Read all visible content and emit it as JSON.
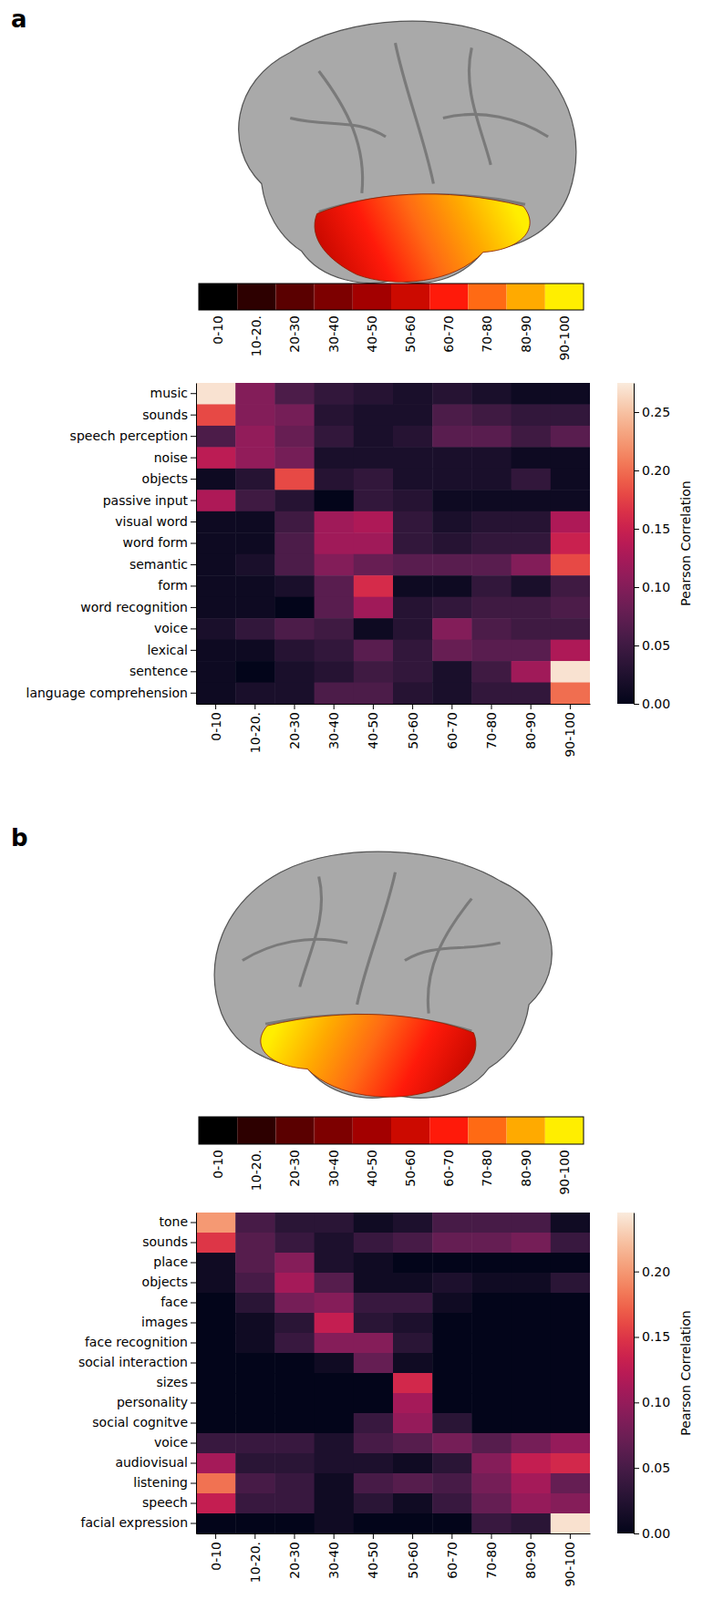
{
  "chart_data": [
    {
      "type": "heatmap",
      "panel_label": "a",
      "bin_legend": {
        "labels": [
          "0-10",
          "10-20.",
          "20-30",
          "30-40",
          "40-50",
          "50-60",
          "60-70",
          "70-80",
          "80-90",
          "90-100"
        ],
        "colors": [
          "#000000",
          "#2d0000",
          "#5a0000",
          "#7d0000",
          "#a30000",
          "#cc0a00",
          "#ff1a0a",
          "#ff6a14",
          "#ffaa00",
          "#ffee00"
        ]
      },
      "x": [
        "0-10",
        "10-20.",
        "20-30",
        "30-40",
        "40-50",
        "50-60",
        "60-70",
        "70-80",
        "80-90",
        "90-100"
      ],
      "y": [
        "music",
        "sounds",
        "speech perception",
        "noise",
        "objects",
        "passive input",
        "visual word",
        "word form",
        "semantic",
        "form",
        "word recognition",
        "voice",
        "lexical",
        "sentence",
        "language comprehension"
      ],
      "values": [
        [
          0.27,
          0.1,
          0.06,
          0.04,
          0.03,
          0.02,
          0.03,
          0.02,
          0.01,
          0.01
        ],
        [
          0.18,
          0.1,
          0.09,
          0.03,
          0.02,
          0.02,
          0.06,
          0.05,
          0.04,
          0.04
        ],
        [
          0.06,
          0.11,
          0.08,
          0.04,
          0.02,
          0.03,
          0.07,
          0.07,
          0.05,
          0.07
        ],
        [
          0.14,
          0.11,
          0.09,
          0.02,
          0.02,
          0.02,
          0.02,
          0.02,
          0.01,
          0.01
        ],
        [
          0.01,
          0.03,
          0.18,
          0.03,
          0.04,
          0.02,
          0.02,
          0.02,
          0.04,
          0.01
        ],
        [
          0.13,
          0.05,
          0.03,
          0.0,
          0.04,
          0.03,
          0.01,
          0.01,
          0.01,
          0.01
        ],
        [
          0.01,
          0.01,
          0.05,
          0.12,
          0.13,
          0.04,
          0.02,
          0.03,
          0.03,
          0.13
        ],
        [
          0.01,
          0.01,
          0.06,
          0.12,
          0.12,
          0.04,
          0.03,
          0.04,
          0.04,
          0.15
        ],
        [
          0.01,
          0.02,
          0.06,
          0.1,
          0.08,
          0.07,
          0.07,
          0.07,
          0.1,
          0.18
        ],
        [
          0.01,
          0.01,
          0.02,
          0.07,
          0.16,
          0.01,
          0.01,
          0.04,
          0.02,
          0.05
        ],
        [
          0.01,
          0.01,
          0.0,
          0.07,
          0.12,
          0.03,
          0.04,
          0.05,
          0.05,
          0.06
        ],
        [
          0.02,
          0.04,
          0.06,
          0.05,
          0.01,
          0.03,
          0.1,
          0.06,
          0.05,
          0.05
        ],
        [
          0.01,
          0.01,
          0.03,
          0.04,
          0.07,
          0.04,
          0.08,
          0.07,
          0.07,
          0.13
        ],
        [
          0.01,
          0.0,
          0.02,
          0.03,
          0.05,
          0.04,
          0.02,
          0.05,
          0.12,
          0.27
        ],
        [
          0.01,
          0.02,
          0.02,
          0.06,
          0.06,
          0.03,
          0.02,
          0.04,
          0.04,
          0.2
        ]
      ],
      "colorbar": {
        "label": "Pearson Correlation",
        "range": [
          0,
          0.275
        ],
        "ticks": [
          {
            "value": 0,
            "label": "0.00"
          },
          {
            "value": 0.05,
            "label": "0.05"
          },
          {
            "value": 0.1,
            "label": "0.10"
          },
          {
            "value": 0.15,
            "label": "0.15"
          },
          {
            "value": 0.2,
            "label": "0.20"
          },
          {
            "value": 0.25,
            "label": "0.25"
          }
        ]
      }
    },
    {
      "type": "heatmap",
      "panel_label": "b",
      "bin_legend": {
        "labels": [
          "0-10",
          "10-20.",
          "20-30",
          "30-40",
          "40-50",
          "50-60",
          "60-70",
          "70-80",
          "80-90",
          "90-100"
        ],
        "colors": [
          "#000000",
          "#2d0000",
          "#5a0000",
          "#7d0000",
          "#a30000",
          "#cc0a00",
          "#ff1a0a",
          "#ff6a14",
          "#ffaa00",
          "#ffee00"
        ]
      },
      "x": [
        "0-10",
        "10-20.",
        "20-30",
        "30-40",
        "40-50",
        "50-60",
        "60-70",
        "70-80",
        "80-90",
        "90-100"
      ],
      "y": [
        "tone",
        "sounds",
        "place",
        "objects",
        "face",
        "images",
        "face recognition",
        "social interaction",
        "sizes",
        "personality",
        "social cognitve",
        "voice",
        "audiovisual",
        "listening",
        "speech",
        "facial expression"
      ],
      "values": [
        [
          0.2,
          0.05,
          0.03,
          0.03,
          0.01,
          0.02,
          0.05,
          0.05,
          0.05,
          0.01
        ],
        [
          0.15,
          0.06,
          0.04,
          0.02,
          0.04,
          0.05,
          0.07,
          0.07,
          0.08,
          0.04
        ],
        [
          0.01,
          0.06,
          0.09,
          0.02,
          0.01,
          0.0,
          0.0,
          0.0,
          0.0,
          0.0
        ],
        [
          0.01,
          0.05,
          0.11,
          0.06,
          0.01,
          0.01,
          0.02,
          0.01,
          0.01,
          0.03
        ],
        [
          0.0,
          0.03,
          0.08,
          0.09,
          0.04,
          0.04,
          0.01,
          0.0,
          0.0,
          0.0
        ],
        [
          0.0,
          0.01,
          0.03,
          0.13,
          0.03,
          0.02,
          0.0,
          0.0,
          0.0,
          0.0
        ],
        [
          0.0,
          0.01,
          0.04,
          0.09,
          0.09,
          0.03,
          0.0,
          0.0,
          0.0,
          0.0
        ],
        [
          0.0,
          0.0,
          0.0,
          0.01,
          0.07,
          0.01,
          0.0,
          0.0,
          0.0,
          0.0
        ],
        [
          0.0,
          0.0,
          0.0,
          0.0,
          0.0,
          0.14,
          0.0,
          0.0,
          0.0,
          0.0
        ],
        [
          0.0,
          0.0,
          0.0,
          0.0,
          0.0,
          0.11,
          0.0,
          0.0,
          0.0,
          0.0
        ],
        [
          0.0,
          0.0,
          0.0,
          0.0,
          0.04,
          0.1,
          0.03,
          0.0,
          0.0,
          0.0
        ],
        [
          0.04,
          0.04,
          0.04,
          0.02,
          0.05,
          0.06,
          0.08,
          0.06,
          0.08,
          0.1
        ],
        [
          0.11,
          0.03,
          0.03,
          0.02,
          0.02,
          0.01,
          0.03,
          0.09,
          0.13,
          0.14
        ],
        [
          0.18,
          0.05,
          0.04,
          0.01,
          0.05,
          0.06,
          0.05,
          0.08,
          0.11,
          0.07
        ],
        [
          0.13,
          0.04,
          0.04,
          0.01,
          0.03,
          0.01,
          0.04,
          0.07,
          0.1,
          0.09
        ],
        [
          0.0,
          0.0,
          0.0,
          0.01,
          0.0,
          0.0,
          0.0,
          0.04,
          0.03,
          0.24
        ]
      ],
      "colorbar": {
        "label": "Pearson Correlation",
        "range": [
          0,
          0.245
        ],
        "ticks": [
          {
            "value": 0,
            "label": "0.00"
          },
          {
            "value": 0.05,
            "label": "0.05"
          },
          {
            "value": 0.1,
            "label": "0.10"
          },
          {
            "value": 0.15,
            "label": "0.15"
          },
          {
            "value": 0.2,
            "label": "0.20"
          }
        ]
      }
    }
  ]
}
